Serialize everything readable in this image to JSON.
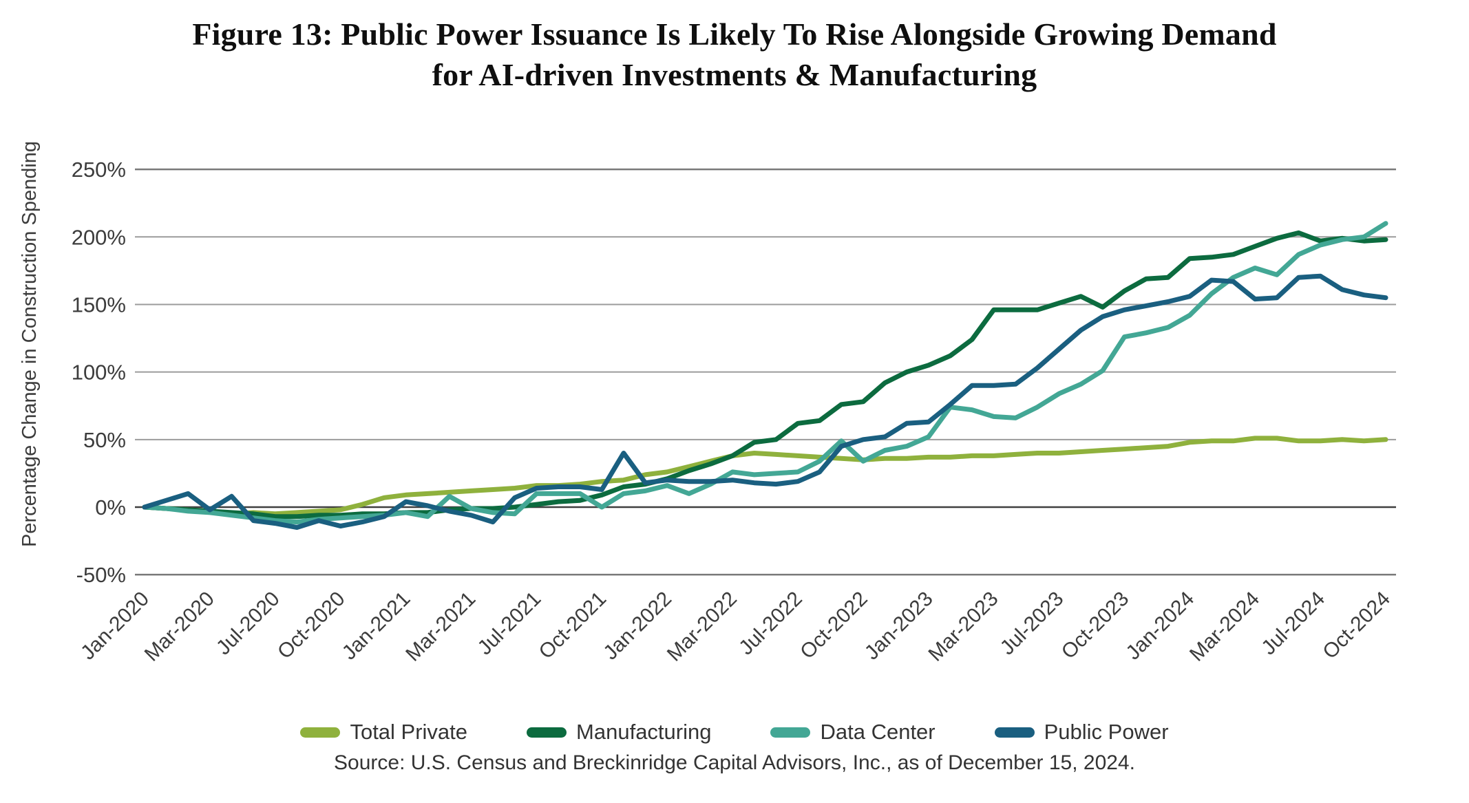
{
  "title": "Figure 13: Public Power Issuance Is Likely To Rise Alongside Growing Demand",
  "title_line2": "for AI-driven Investments & Manufacturing",
  "source": "Source: U.S. Census and Breckinridge Capital Advisors, Inc., as of December 15, 2024.",
  "chart_data": {
    "type": "line",
    "title": "Figure 13: Public Power Issuance Is Likely To Rise Alongside Growing Demand for AI-driven Investments & Manufacturing",
    "ylabel": "Percentage Change in Construction Spending",
    "xlabel": "",
    "grid": "horizontal",
    "legend_position": "bottom",
    "ylim": [
      -50,
      250
    ],
    "yticks": [
      {
        "value": 250,
        "label": "250%"
      },
      {
        "value": 200,
        "label": "200%"
      },
      {
        "value": 150,
        "label": "150%"
      },
      {
        "value": 100,
        "label": "100%"
      },
      {
        "value": 50,
        "label": "50%"
      },
      {
        "value": 0,
        "label": "0%"
      },
      {
        "value": -50,
        "label": "-50%"
      }
    ],
    "x_tick_labels": [
      "Jan-2020",
      "Mar-2020",
      "Jul-2020",
      "Oct-2020",
      "Jan-2021",
      "Mar-2021",
      "Jul-2021",
      "Oct-2021",
      "Jan-2022",
      "Mar-2022",
      "Jul-2022",
      "Oct-2022",
      "Jan-2023",
      "Mar-2023",
      "Jul-2023",
      "Oct-2023",
      "Jan-2024",
      "Mar-2024",
      "Jul-2024",
      "Oct-2024"
    ],
    "x_tick_every": 3,
    "x": [
      "Jan-2020",
      "Feb-2020",
      "Mar-2020",
      "Apr-2020",
      "May-2020",
      "Jun-2020",
      "Jul-2020",
      "Aug-2020",
      "Sep-2020",
      "Oct-2020",
      "Nov-2020",
      "Dec-2020",
      "Jan-2021",
      "Feb-2021",
      "Mar-2021",
      "Apr-2021",
      "May-2021",
      "Jun-2021",
      "Jul-2021",
      "Aug-2021",
      "Sep-2021",
      "Oct-2021",
      "Nov-2021",
      "Dec-2021",
      "Jan-2022",
      "Feb-2022",
      "Mar-2022",
      "Apr-2022",
      "May-2022",
      "Jun-2022",
      "Jul-2022",
      "Aug-2022",
      "Sep-2022",
      "Oct-2022",
      "Nov-2022",
      "Dec-2022",
      "Jan-2023",
      "Feb-2023",
      "Mar-2023",
      "Apr-2023",
      "May-2023",
      "Jun-2023",
      "Jul-2023",
      "Aug-2023",
      "Sep-2023",
      "Oct-2023",
      "Nov-2023",
      "Dec-2023",
      "Jan-2024",
      "Feb-2024",
      "Mar-2024",
      "Apr-2024",
      "May-2024",
      "Jun-2024",
      "Jul-2024",
      "Aug-2024",
      "Sep-2024",
      "Oct-2024"
    ],
    "units": "percent",
    "series": [
      {
        "name": "Total Private",
        "color": "#8fb13d",
        "values": [
          0,
          -1,
          -2,
          -3,
          -5,
          -4,
          -5,
          -4,
          -3,
          -2,
          2,
          7,
          9,
          10,
          11,
          12,
          13,
          14,
          16,
          16,
          17,
          19,
          20,
          24,
          26,
          30,
          34,
          38,
          40,
          39,
          38,
          37,
          36,
          35,
          36,
          36,
          37,
          37,
          38,
          38,
          39,
          40,
          40,
          41,
          42,
          43,
          44,
          45,
          48,
          49,
          49,
          51,
          51,
          49,
          49,
          50,
          49,
          50
        ]
      },
      {
        "name": "Manufacturing",
        "color": "#0c6b3f",
        "values": [
          0,
          -1,
          -2,
          -3,
          -4,
          -5,
          -7,
          -7,
          -6,
          -6,
          -5,
          -5,
          -4,
          -4,
          -2,
          -1,
          -1,
          0,
          2,
          4,
          5,
          9,
          15,
          17,
          21,
          27,
          32,
          38,
          48,
          50,
          62,
          64,
          76,
          78,
          92,
          100,
          105,
          112,
          124,
          146,
          146,
          146,
          151,
          156,
          148,
          160,
          169,
          170,
          184,
          185,
          187,
          193,
          199,
          203,
          197,
          199,
          197,
          198
        ]
      },
      {
        "name": "Data Center",
        "color": "#43a795",
        "values": [
          0,
          -1,
          -3,
          -4,
          -6,
          -8,
          -10,
          -11,
          -9,
          -8,
          -7,
          -6,
          -4,
          -7,
          8,
          -1,
          -4,
          -5,
          10,
          10,
          10,
          0,
          10,
          12,
          16,
          10,
          17,
          26,
          24,
          25,
          26,
          34,
          49,
          34,
          42,
          45,
          52,
          74,
          72,
          67,
          66,
          74,
          84,
          91,
          101,
          126,
          129,
          133,
          142,
          158,
          170,
          177,
          172,
          187,
          194,
          198,
          200,
          210
        ]
      },
      {
        "name": "Public Power",
        "color": "#1a5f80",
        "values": [
          0,
          5,
          10,
          -2,
          8,
          -10,
          -12,
          -15,
          -10,
          -14,
          -11,
          -7,
          4,
          1,
          -3,
          -6,
          -11,
          7,
          14,
          15,
          15,
          13,
          40,
          18,
          20,
          19,
          19,
          20,
          18,
          17,
          19,
          26,
          45,
          50,
          52,
          62,
          63,
          76,
          90,
          90,
          91,
          103,
          117,
          131,
          141,
          146,
          149,
          152,
          156,
          168,
          167,
          154,
          155,
          170,
          171,
          161,
          157,
          155
        ]
      }
    ]
  }
}
